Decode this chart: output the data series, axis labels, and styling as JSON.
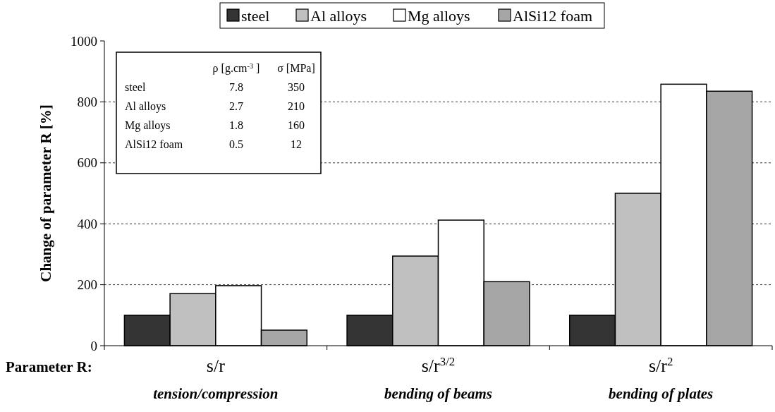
{
  "chart_data": {
    "type": "bar",
    "xlabel": "Parameter R:",
    "ylabel": "Change of parameter R [%]",
    "categories": [
      "s/r\ntension/compression",
      "s/r$^{3/2}$\nbending of beams",
      "s/r$^{2}$\nbending of plates"
    ],
    "series": [
      {
        "name": "steel",
        "color": "#333333",
        "values": [
          100,
          100,
          100
        ]
      },
      {
        "name": "Al alloys",
        "color": "#c0c0c0",
        "values": [
          171,
          294,
          500
        ]
      },
      {
        "name": "Mg alloys",
        "color": "#ffffff",
        "values": [
          197,
          412,
          858
        ]
      },
      {
        "name": "AlSi12 foam",
        "color": "#a6a6a6",
        "values": [
          51,
          210,
          835
        ]
      }
    ],
    "ylim": [
      0,
      1000
    ],
    "yticks": [
      0,
      200,
      400,
      600,
      800,
      1000
    ],
    "grid": "y",
    "legend": "top",
    "annotations": [
      "ρ [g.cm$^{-3}$ ]",
      "σ [MPa]",
      "steel",
      "7.8",
      "350",
      "Al alloys",
      "2.7",
      "210",
      "Mg alloys",
      "1.8",
      "160",
      "AlSi12 foam",
      "0.5",
      "12"
    ]
  }
}
